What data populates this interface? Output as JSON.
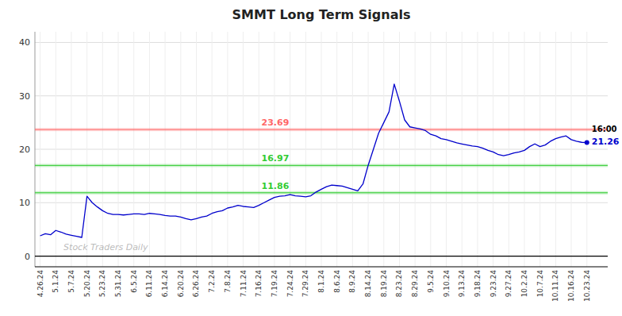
{
  "chart_data": {
    "type": "line",
    "title": "SMMT Long Term Signals",
    "categories": [
      "4.26.24",
      null,
      null,
      "5.1.24",
      null,
      null,
      "5.7.24",
      null,
      null,
      "5.20.24",
      null,
      null,
      "5.23.24",
      null,
      null,
      "5.31.24",
      null,
      null,
      "6.5.24",
      null,
      null,
      "6.11.24",
      null,
      null,
      "6.14.24",
      null,
      null,
      "6.20.24",
      null,
      null,
      "6.26.24",
      null,
      null,
      "7.2.24",
      null,
      null,
      "7.8.24",
      null,
      null,
      "7.11.24",
      null,
      null,
      "7.16.24",
      null,
      null,
      "7.19.24",
      null,
      null,
      "7.24.24",
      null,
      null,
      "7.29.24",
      null,
      null,
      "8.1.24",
      null,
      null,
      "8.6.24",
      null,
      null,
      "8.9.24",
      null,
      null,
      "8.14.24",
      null,
      null,
      "8.19.24",
      null,
      null,
      "8.23.24",
      null,
      null,
      "8.29.24",
      null,
      null,
      "9.5.24",
      null,
      null,
      "9.10.24",
      null,
      null,
      "9.13.24",
      null,
      null,
      "9.18.24",
      null,
      null,
      "9.23.24",
      null,
      null,
      "9.27.24",
      null,
      null,
      "10.2.24",
      null,
      null,
      "10.7.24",
      null,
      null,
      "10.11.24",
      null,
      null,
      "10.16.24",
      null,
      null,
      "10.23.24"
    ],
    "values": [
      3.8,
      4.2,
      4.0,
      4.8,
      4.5,
      4.1,
      3.9,
      3.7,
      3.5,
      11.2,
      10.0,
      9.2,
      8.5,
      8.0,
      7.8,
      7.8,
      7.7,
      7.8,
      7.9,
      7.9,
      7.8,
      8.0,
      7.9,
      7.8,
      7.6,
      7.5,
      7.5,
      7.3,
      7.0,
      6.8,
      7.0,
      7.3,
      7.5,
      8.0,
      8.3,
      8.5,
      9.0,
      9.2,
      9.5,
      9.3,
      9.2,
      9.1,
      9.5,
      10.0,
      10.5,
      11.0,
      11.2,
      11.3,
      11.5,
      11.3,
      11.2,
      11.1,
      11.3,
      12.0,
      12.5,
      13.0,
      13.3,
      13.2,
      13.1,
      12.8,
      12.5,
      12.2,
      13.5,
      17.0,
      20.0,
      23.0,
      25.0,
      27.0,
      32.2,
      29.0,
      25.5,
      24.2,
      24.0,
      23.8,
      23.5,
      22.8,
      22.5,
      22.0,
      21.8,
      21.5,
      21.2,
      21.0,
      20.8,
      20.6,
      20.5,
      20.2,
      19.8,
      19.5,
      19.0,
      18.8,
      19.0,
      19.3,
      19.5,
      19.8,
      20.5,
      21.0,
      20.5,
      20.8,
      21.5,
      22.0,
      22.3,
      22.5,
      21.8,
      21.5,
      21.3,
      21.26
    ],
    "color": "#0000cc",
    "ylim": [
      -2,
      42
    ],
    "yticks": [
      0,
      10,
      20,
      30,
      40
    ],
    "grid": true,
    "reference_lines": [
      {
        "value": 23.69,
        "color": "#ff6666"
      },
      {
        "value": 16.97,
        "color": "#33cc33"
      },
      {
        "value": 11.86,
        "color": "#33cc33"
      }
    ],
    "annotations": [
      "16:00",
      "Stock Traders Daily"
    ]
  }
}
